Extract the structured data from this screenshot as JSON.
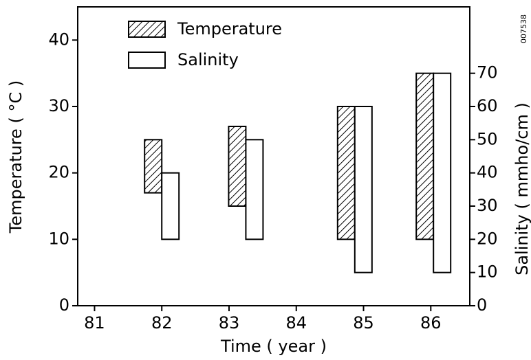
{
  "chart_data": {
    "type": "range-bar",
    "annotation": "007538",
    "xlabel": "Time ( year )",
    "ylabel": "Temperature ( °C )",
    "y2label": "Salinity ( mmho/cm )",
    "x": [
      82,
      83.25,
      84.87,
      86.04
    ],
    "xlim": [
      80.75,
      86.58
    ],
    "xticks": [
      81,
      82,
      83,
      84,
      85,
      86
    ],
    "ylim": [
      0,
      45
    ],
    "yticks": [
      0,
      10,
      20,
      30,
      40
    ],
    "y2lim": [
      0,
      90
    ],
    "y2ticks": [
      0,
      10,
      20,
      30,
      40,
      50,
      60,
      70
    ],
    "legend": "upper left",
    "series": [
      {
        "name": "Temperature",
        "pattern": "hatch",
        "lows": [
          17,
          15,
          10,
          10
        ],
        "highs": [
          25,
          27,
          30,
          35
        ]
      },
      {
        "name": "Salinity",
        "pattern": "none",
        "axis": "y2",
        "lows": [
          20,
          20,
          10,
          10
        ],
        "highs": [
          40,
          50,
          60,
          70
        ]
      }
    ]
  }
}
